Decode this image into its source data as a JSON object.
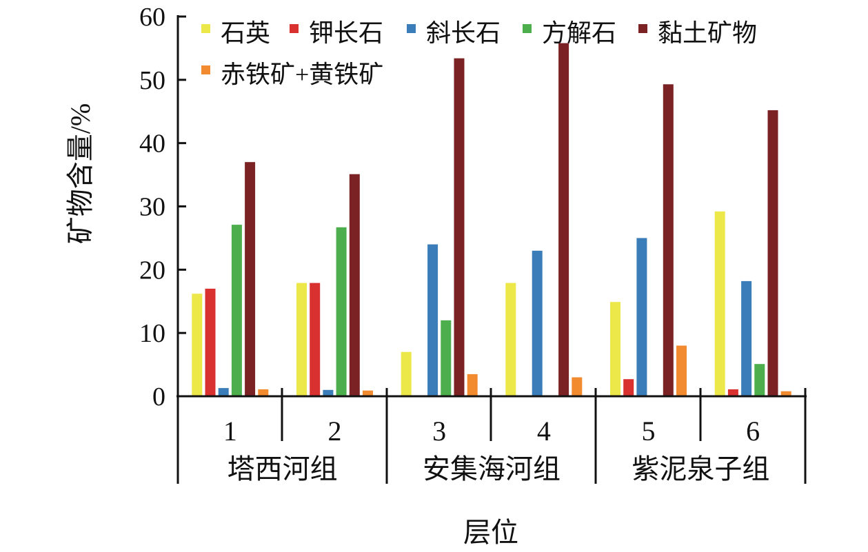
{
  "chart_data": {
    "type": "bar",
    "title": "",
    "ylabel": "矿物含量/%",
    "xlabel": "层位",
    "ylim": [
      0,
      60
    ],
    "yticks": [
      "0",
      "10",
      "20",
      "30",
      "40",
      "50",
      "60"
    ],
    "categories": [
      "1",
      "2",
      "3",
      "4",
      "5",
      "6"
    ],
    "groups": [
      {
        "label": "塔西河组",
        "categories": [
          "1",
          "2"
        ]
      },
      {
        "label": "安集海河组",
        "categories": [
          "3",
          "4"
        ]
      },
      {
        "label": "紫泥泉子组",
        "categories": [
          "5",
          "6"
        ]
      }
    ],
    "legend_position": "top",
    "series": [
      {
        "name": "石英",
        "color": "#ede84a",
        "values": [
          16.2,
          17.9,
          7.0,
          17.9,
          14.9,
          29.2
        ]
      },
      {
        "name": "钾长石",
        "color": "#d93130",
        "values": [
          17.0,
          17.9,
          0,
          0,
          2.7,
          1.1
        ]
      },
      {
        "name": "斜长石",
        "color": "#3a7db8",
        "values": [
          1.3,
          1.0,
          24.0,
          23.0,
          25.0,
          18.2
        ]
      },
      {
        "name": "方解石",
        "color": "#4cae4c",
        "values": [
          27.1,
          26.7,
          12.0,
          0,
          0,
          5.1
        ]
      },
      {
        "name": "黏土矿物",
        "color": "#7b2324",
        "values": [
          37.0,
          35.1,
          53.4,
          55.8,
          49.3,
          45.2
        ]
      },
      {
        "name": "赤铁矿+黄铁矿",
        "color": "#f28a30",
        "values": [
          1.1,
          0.9,
          3.5,
          3.0,
          8.0,
          0.8
        ]
      }
    ]
  }
}
